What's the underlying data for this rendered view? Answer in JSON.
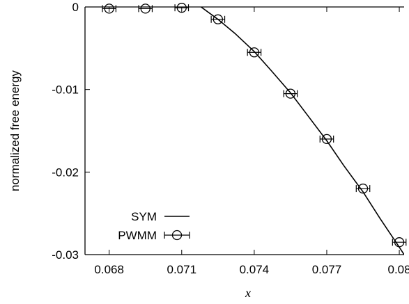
{
  "chart_data": {
    "type": "line",
    "xlabel": "x",
    "ylabel": "normalized free energy",
    "xlim": [
      0.067,
      0.0802
    ],
    "ylim": [
      -0.03,
      0
    ],
    "xticks": [
      0.068,
      0.071,
      0.074,
      0.077,
      0.08
    ],
    "xtick_labels": [
      "0.068",
      "0.071",
      "0.074",
      "0.077",
      "0.08"
    ],
    "yticks": [
      0,
      -0.01,
      -0.02,
      -0.03
    ],
    "ytick_labels": [
      "0",
      "-0.01",
      "-0.02",
      "-0.03"
    ],
    "grid": false,
    "legend_position": "bottom-left",
    "series": [
      {
        "name": "SYM",
        "style": "line",
        "color": "#000000",
        "x": [
          0.0718,
          0.0725,
          0.0732,
          0.074,
          0.0747,
          0.0755,
          0.0762,
          0.077,
          0.0777,
          0.0785,
          0.0792,
          0.08,
          0.0802
        ],
        "y": [
          0.0,
          -0.0015,
          -0.0032,
          -0.0054,
          -0.0077,
          -0.0104,
          -0.0131,
          -0.0162,
          -0.0192,
          -0.0224,
          -0.0256,
          -0.0291,
          -0.03
        ]
      },
      {
        "name": "PWMM",
        "style": "errorbar-circle",
        "color": "#000000",
        "x": [
          0.068,
          0.0695,
          0.071,
          0.0725,
          0.074,
          0.0755,
          0.077,
          0.0785,
          0.08
        ],
        "y": [
          -0.0002,
          -0.0002,
          -0.0001,
          -0.0015,
          -0.0055,
          -0.0105,
          -0.016,
          -0.022,
          -0.0285
        ],
        "xerr": [
          0.00028,
          0.00028,
          0.00028,
          0.00028,
          0.00028,
          0.00028,
          0.00028,
          0.00028,
          0.00028
        ]
      }
    ]
  }
}
